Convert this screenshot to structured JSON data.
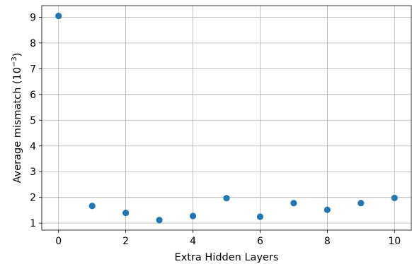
{
  "chart_data": {
    "type": "scatter",
    "xlabel": "Extra Hidden Layers",
    "ylabel": "Average mismatch (10",
    "ylabel_exponent": "−3",
    "ylabel_suffix": ")",
    "x": [
      0,
      1,
      2,
      3,
      4,
      5,
      6,
      7,
      8,
      9,
      10
    ],
    "y": [
      9.05,
      1.67,
      1.4,
      1.12,
      1.28,
      1.97,
      1.25,
      1.78,
      1.52,
      1.78,
      1.98
    ],
    "xlim": [
      -0.5,
      10.5
    ],
    "ylim": [
      0.73,
      9.45
    ],
    "xticks": [
      0,
      2,
      4,
      6,
      8,
      10
    ],
    "yticks": [
      1,
      2,
      3,
      4,
      5,
      6,
      7,
      8,
      9
    ],
    "grid": true,
    "marker_color": "#1f77b4"
  }
}
